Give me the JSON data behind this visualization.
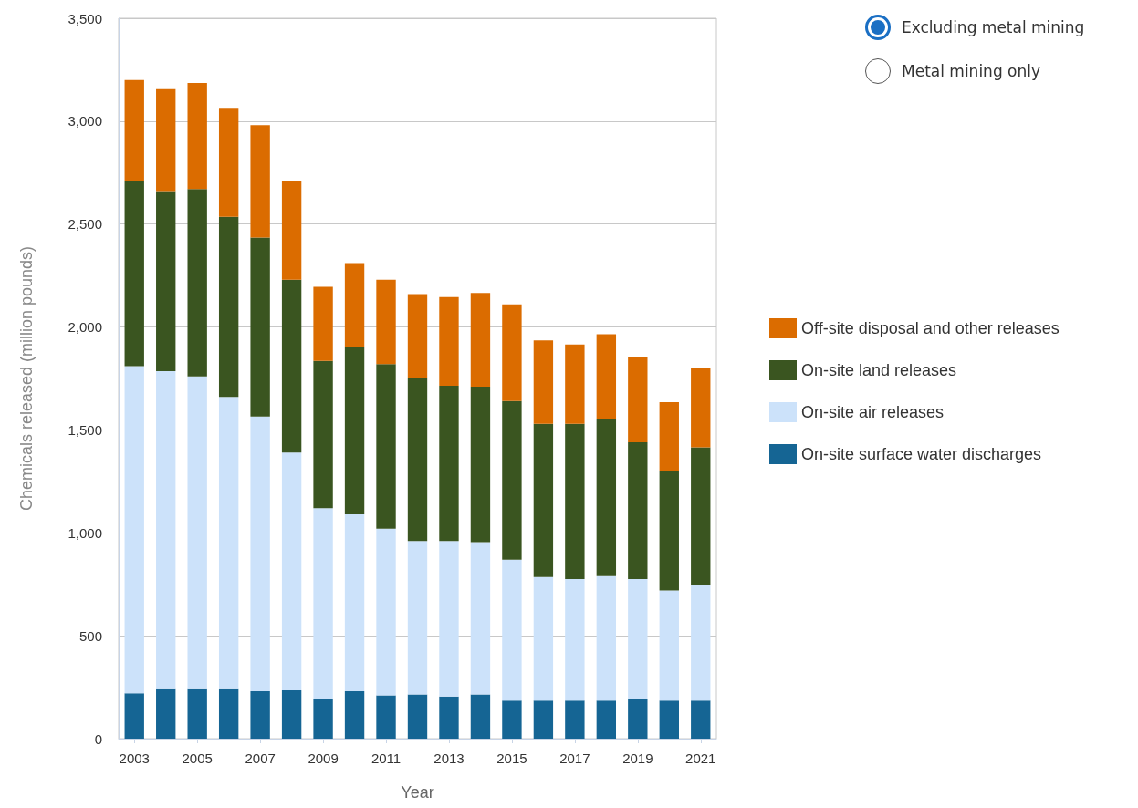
{
  "chart_data": {
    "type": "bar",
    "stacked": true,
    "xlabel": "Year",
    "ylabel": "Chemicals released (million pounds)",
    "categories": [
      "2003",
      null,
      "2005",
      null,
      "2007",
      null,
      "2009",
      null,
      "2011",
      null,
      "2013",
      null,
      "2015",
      null,
      "2017",
      null,
      "2019",
      null,
      "2021"
    ],
    "series": [
      {
        "name": "On-site surface water discharges",
        "color": "#156594",
        "values": [
          220,
          245,
          245,
          245,
          230,
          235,
          195,
          230,
          210,
          215,
          205,
          215,
          185,
          185,
          185,
          185,
          195,
          185,
          185
        ]
      },
      {
        "name": "On-site air releases",
        "color": "#cce2fa",
        "values": [
          1590,
          1540,
          1515,
          1415,
          1335,
          1155,
          925,
          860,
          810,
          745,
          755,
          740,
          685,
          600,
          590,
          605,
          580,
          535,
          560
        ]
      },
      {
        "name": "On-site land releases",
        "color": "#3a5520",
        "values": [
          900,
          875,
          910,
          875,
          870,
          840,
          715,
          815,
          800,
          790,
          755,
          755,
          770,
          745,
          755,
          765,
          665,
          580,
          670
        ]
      },
      {
        "name": "Off-site disposal and other releases",
        "color": "#db6c00",
        "values": [
          490,
          495,
          515,
          530,
          545,
          480,
          360,
          405,
          410,
          410,
          430,
          455,
          470,
          405,
          385,
          410,
          415,
          335,
          385
        ]
      }
    ],
    "ylim": [
      0,
      3500
    ],
    "yticks": [
      0,
      {
        "value": 500,
        "label": "500"
      },
      {
        "value": 1000,
        "label": "1,000"
      },
      {
        "value": 1500,
        "label": "1,500"
      },
      {
        "value": 2000,
        "label": "2,000"
      },
      {
        "value": 2500,
        "label": "2,500"
      },
      {
        "value": 3000,
        "label": "3,000"
      },
      {
        "value": 3500,
        "label": "3,500"
      }
    ],
    "grid": "y",
    "legend": "right",
    "annotations": [
      "Excluding metal mining",
      "Metal mining only"
    ]
  }
}
